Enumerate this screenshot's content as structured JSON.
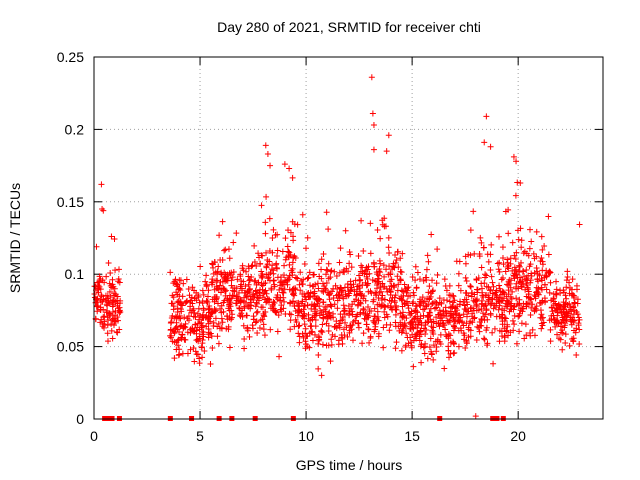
{
  "chart_data": {
    "type": "scatter",
    "title": "Day 280 of 2021, SRMTID for receiver chti",
    "xlabel": "GPS time / hours",
    "ylabel": "SRMTID / TECUs",
    "xlim": [
      0,
      24
    ],
    "ylim": [
      0,
      0.25
    ],
    "x_ticks": [
      0,
      5,
      10,
      15,
      20
    ],
    "x_tick_labels": [
      "0",
      "5",
      "10",
      "15",
      "20"
    ],
    "y_ticks": [
      0,
      0.05,
      0.1,
      0.15,
      0.2,
      0.25
    ],
    "y_tick_labels": [
      "0",
      "0.05",
      "0.1",
      "0.15",
      "0.2",
      "0.25"
    ],
    "grid": true,
    "marker": "+",
    "color": "#ff0000",
    "segments": [
      {
        "start": 0.0,
        "end": 1.25,
        "base": 0.078,
        "spread": 0.022
      },
      {
        "start": 3.55,
        "end": 5.5,
        "base": 0.068,
        "spread": 0.025
      },
      {
        "start": 5.5,
        "end": 7.5,
        "base": 0.085,
        "spread": 0.028
      },
      {
        "start": 7.5,
        "end": 9.5,
        "base": 0.092,
        "spread": 0.032
      },
      {
        "start": 9.5,
        "end": 12.5,
        "base": 0.078,
        "spread": 0.03
      },
      {
        "start": 12.5,
        "end": 14.5,
        "base": 0.085,
        "spread": 0.035
      },
      {
        "start": 14.5,
        "end": 17.5,
        "base": 0.07,
        "spread": 0.025
      },
      {
        "start": 17.5,
        "end": 19.5,
        "base": 0.08,
        "spread": 0.03
      },
      {
        "start": 19.5,
        "end": 21.5,
        "base": 0.09,
        "spread": 0.03
      },
      {
        "start": 21.5,
        "end": 22.9,
        "base": 0.075,
        "spread": 0.025
      }
    ],
    "peaks": [
      {
        "x": 0.35,
        "y": 0.162
      },
      {
        "x": 0.38,
        "y": 0.145
      },
      {
        "x": 8.1,
        "y": 0.189
      },
      {
        "x": 8.2,
        "y": 0.183
      },
      {
        "x": 8.3,
        "y": 0.175
      },
      {
        "x": 9.0,
        "y": 0.176
      },
      {
        "x": 9.2,
        "y": 0.173
      },
      {
        "x": 13.1,
        "y": 0.236
      },
      {
        "x": 13.15,
        "y": 0.211
      },
      {
        "x": 13.2,
        "y": 0.203
      },
      {
        "x": 13.2,
        "y": 0.186
      },
      {
        "x": 13.9,
        "y": 0.196
      },
      {
        "x": 13.8,
        "y": 0.185
      },
      {
        "x": 18.5,
        "y": 0.209
      },
      {
        "x": 18.4,
        "y": 0.191
      },
      {
        "x": 18.7,
        "y": 0.188
      },
      {
        "x": 19.8,
        "y": 0.181
      },
      {
        "x": 19.9,
        "y": 0.178
      },
      {
        "x": 20.1,
        "y": 0.163
      },
      {
        "x": 18.0,
        "y": 0.002
      }
    ],
    "zero_markers": [
      0.5,
      0.65,
      0.85,
      1.2,
      3.6,
      4.6,
      5.9,
      6.5,
      7.6,
      9.4,
      16.3,
      18.8,
      19.0,
      19.3
    ]
  }
}
